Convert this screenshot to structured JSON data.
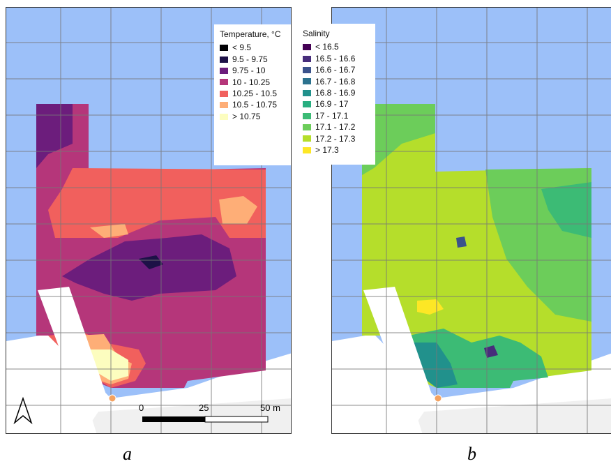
{
  "panel_a": {
    "label": "a",
    "legend": {
      "title": "Temperature, °C",
      "items": [
        {
          "label": "< 9.5",
          "color": "#000004"
        },
        {
          "label": "9.5 - 9.75",
          "color": "#1d1147"
        },
        {
          "label": "9.75 - 10",
          "color": "#6c1d7c"
        },
        {
          "label": "10 - 10.25",
          "color": "#b5367a"
        },
        {
          "label": "10.25 - 10.5",
          "color": "#f1605d"
        },
        {
          "label": "10.5 - 10.75",
          "color": "#feae77"
        },
        {
          "label": "> 10.75",
          "color": "#fcfdbf"
        }
      ]
    },
    "scale_bar": {
      "ticks": [
        "0",
        "25",
        "50 m"
      ]
    },
    "north_arrow": "north-arrow-icon"
  },
  "panel_b": {
    "label": "b",
    "legend": {
      "title": "Salinity",
      "items": [
        {
          "label": "< 16.5",
          "color": "#440154"
        },
        {
          "label": "16.5 - 16.6",
          "color": "#472d7b"
        },
        {
          "label": "16.6 - 16.7",
          "color": "#3b528b"
        },
        {
          "label": "16.7 - 16.8",
          "color": "#2c728e"
        },
        {
          "label": "16.8 - 16.9",
          "color": "#21918c"
        },
        {
          "label": "16.9 - 17",
          "color": "#28ae80"
        },
        {
          "label": "17 - 17.1",
          "color": "#3cbb75"
        },
        {
          "label": "17.1 - 17.2",
          "color": "#6ccd5a"
        },
        {
          "label": "17.2 - 17.3",
          "color": "#b5de2b"
        },
        {
          "label": "> 17.3",
          "color": "#fde725"
        }
      ]
    }
  },
  "colors": {
    "water": "#9cc0f9",
    "land": "#ffffff",
    "land_shadow": "#eeeeee",
    "grid": "#777777",
    "marker": "#f4a261"
  }
}
